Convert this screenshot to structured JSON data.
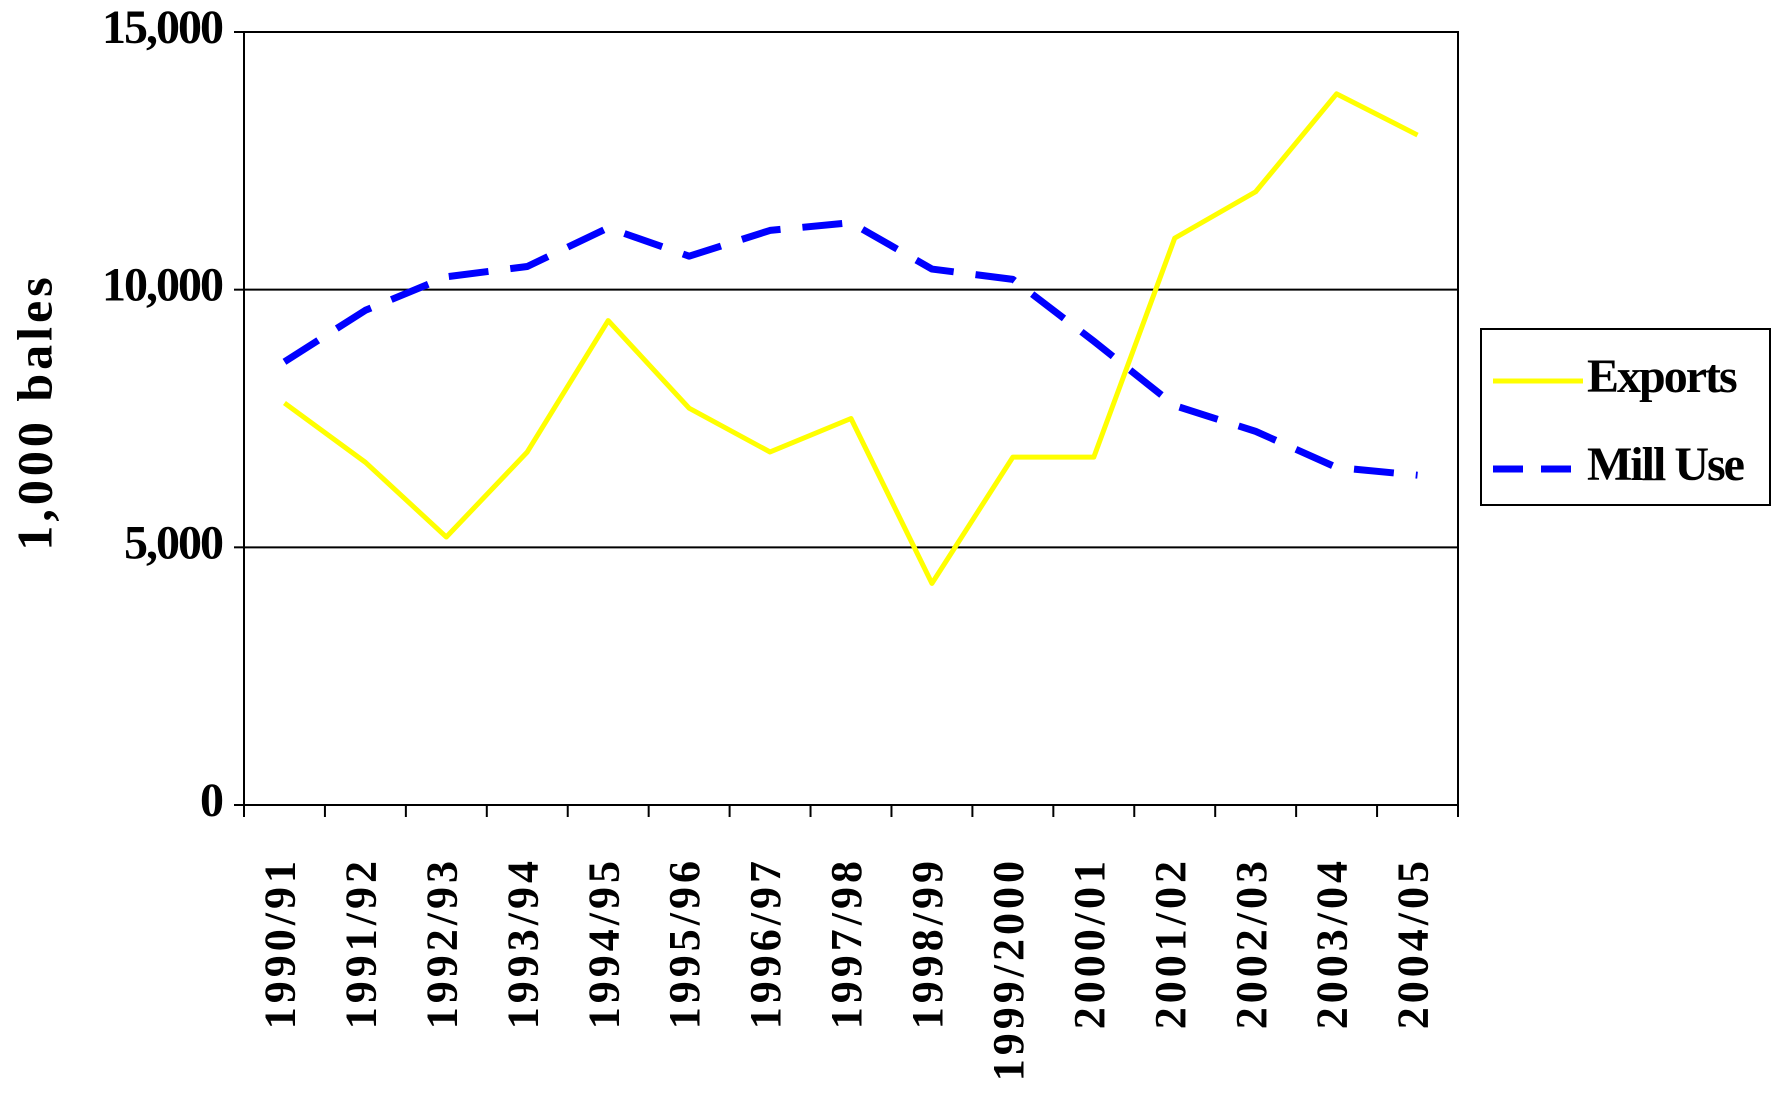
{
  "chart_data": {
    "type": "line",
    "y_label": "1,000 bales",
    "categories": [
      "1990/91",
      "1991/92",
      "1992/93",
      "1993/94",
      "1994/95",
      "1995/96",
      "1996/97",
      "1997/98",
      "1998/99",
      "1999/2000",
      "2000/01",
      "2001/02",
      "2002/03",
      "2003/04",
      "2004/05"
    ],
    "series": [
      {
        "name": "Exports",
        "color": "#ffff00",
        "dashed": false,
        "values": [
          7800,
          6650,
          5200,
          6850,
          9400,
          7700,
          6850,
          7500,
          4300,
          6750,
          6750,
          11000,
          11900,
          13800,
          13000
        ]
      },
      {
        "name": "Mill Use",
        "color": "#0000ff",
        "dashed": true,
        "values": [
          8600,
          9600,
          10250,
          10450,
          11200,
          10650,
          11150,
          11300,
          10400,
          10200,
          9000,
          7750,
          7250,
          6550,
          6400
        ]
      }
    ],
    "ylim": [
      0,
      15000
    ],
    "yticks": [
      0,
      {
        "value": 5000,
        "label": "5,000"
      },
      {
        "value": 10000,
        "label": "10,000"
      },
      {
        "value": 15000,
        "label": "15,000"
      }
    ],
    "grid": true,
    "legend": "right"
  }
}
